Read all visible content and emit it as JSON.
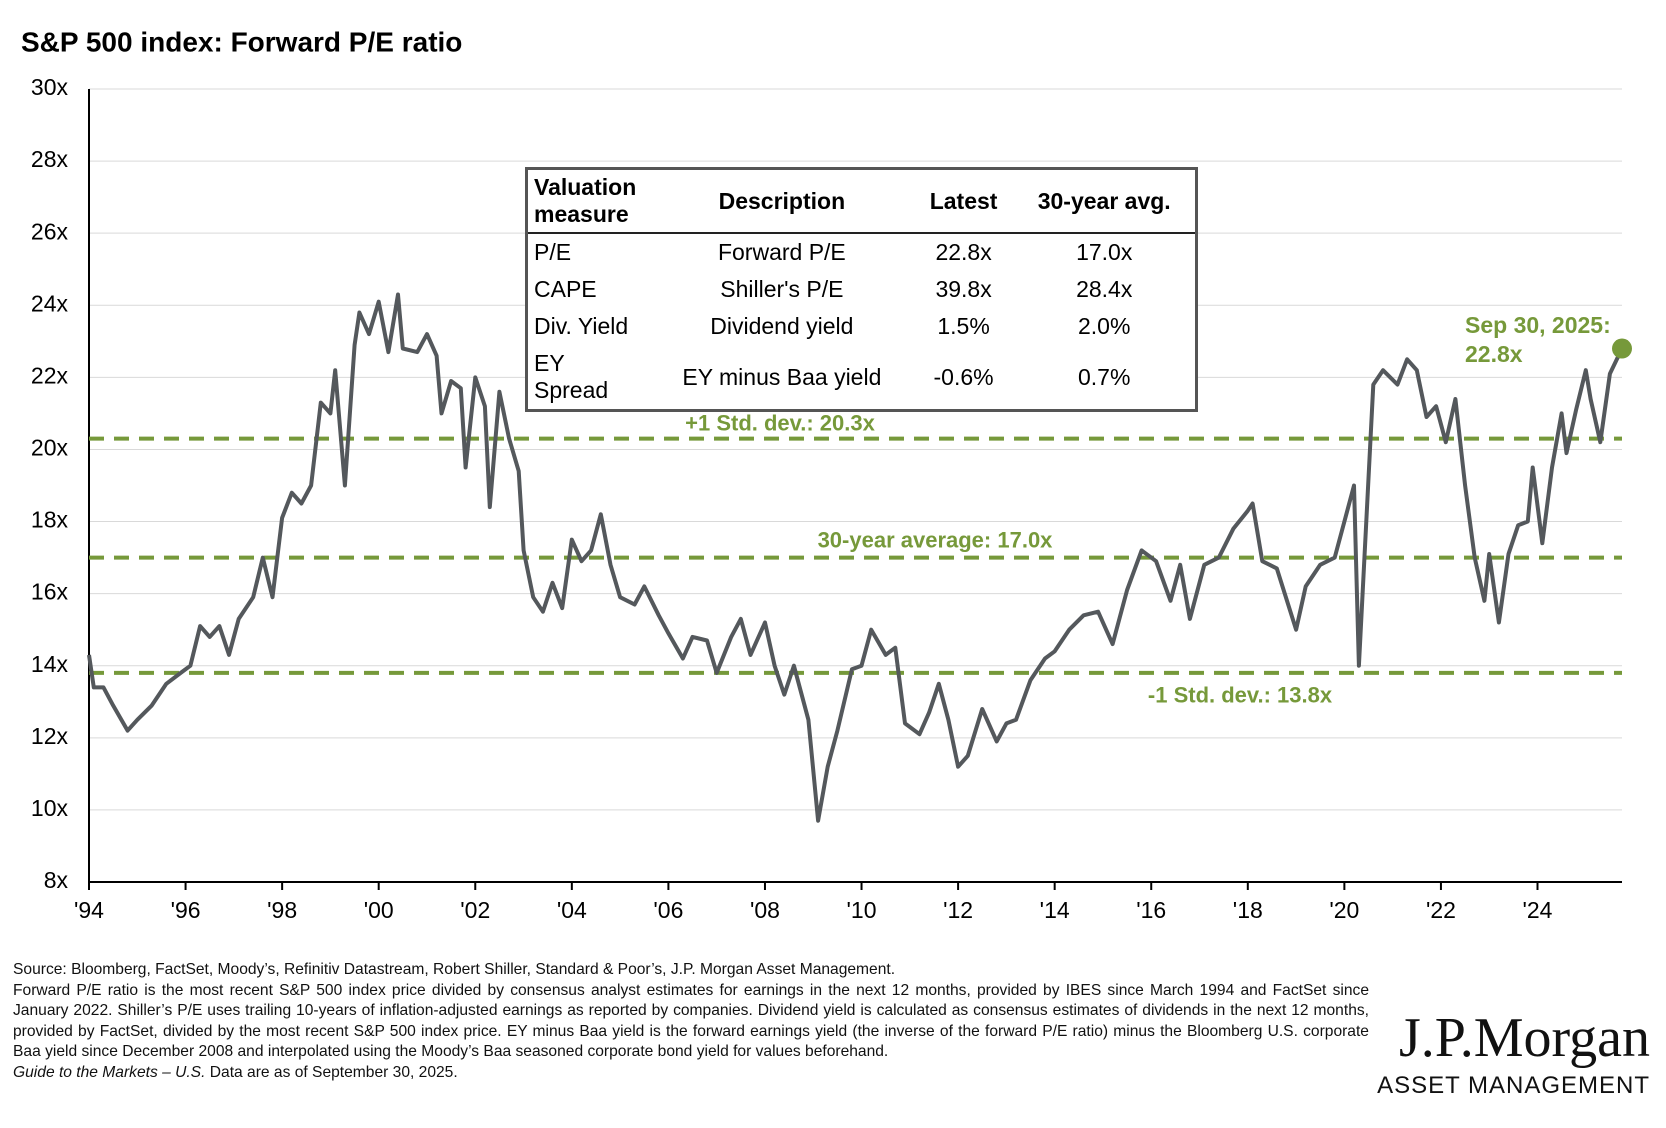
{
  "chart_data": {
    "type": "line",
    "title": "S&P 500 index: Forward P/E ratio",
    "color": "#54585c",
    "reference_color": "#76993a",
    "grid": true,
    "xlim": [
      1994,
      2025.75
    ],
    "xticks": [
      {
        "value": 1994,
        "label": "'94"
      },
      {
        "value": 1996,
        "label": "'96"
      },
      {
        "value": 1998,
        "label": "'98"
      },
      {
        "value": 2000,
        "label": "'00"
      },
      {
        "value": 2002,
        "label": "'02"
      },
      {
        "value": 2004,
        "label": "'04"
      },
      {
        "value": 2006,
        "label": "'06"
      },
      {
        "value": 2008,
        "label": "'08"
      },
      {
        "value": 2010,
        "label": "'10"
      },
      {
        "value": 2012,
        "label": "'12"
      },
      {
        "value": 2014,
        "label": "'14"
      },
      {
        "value": 2016,
        "label": "'16"
      },
      {
        "value": 2018,
        "label": "'18"
      },
      {
        "value": 2020,
        "label": "'20"
      },
      {
        "value": 2022,
        "label": "'22"
      },
      {
        "value": 2024,
        "label": "'24"
      }
    ],
    "ylim": [
      8,
      30
    ],
    "yticks": [
      {
        "value": 8,
        "label": "8x"
      },
      {
        "value": 10,
        "label": "10x"
      },
      {
        "value": 12,
        "label": "12x"
      },
      {
        "value": 14,
        "label": "14x"
      },
      {
        "value": 16,
        "label": "16x"
      },
      {
        "value": 18,
        "label": "18x"
      },
      {
        "value": 20,
        "label": "20x"
      },
      {
        "value": 22,
        "label": "22x"
      },
      {
        "value": 24,
        "label": "24x"
      },
      {
        "value": 26,
        "label": "26x"
      },
      {
        "value": 28,
        "label": "28x"
      },
      {
        "value": 30,
        "label": "30x"
      }
    ],
    "x": [
      1994.0,
      1994.1,
      1994.3,
      1994.5,
      1994.8,
      1995.0,
      1995.3,
      1995.6,
      1995.9,
      1996.1,
      1996.3,
      1996.5,
      1996.7,
      1996.9,
      1997.1,
      1997.4,
      1997.6,
      1997.8,
      1998.0,
      1998.2,
      1998.4,
      1998.6,
      1998.8,
      1999.0,
      1999.1,
      1999.3,
      1999.5,
      1999.6,
      1999.8,
      2000.0,
      2000.2,
      2000.4,
      2000.5,
      2000.8,
      2001.0,
      2001.2,
      2001.3,
      2001.5,
      2001.7,
      2001.8,
      2002.0,
      2002.2,
      2002.3,
      2002.5,
      2002.7,
      2002.9,
      2003.0,
      2003.2,
      2003.4,
      2003.6,
      2003.8,
      2004.0,
      2004.2,
      2004.4,
      2004.6,
      2004.8,
      2005.0,
      2005.3,
      2005.5,
      2005.8,
      2006.0,
      2006.3,
      2006.5,
      2006.8,
      2007.0,
      2007.3,
      2007.5,
      2007.7,
      2008.0,
      2008.2,
      2008.4,
      2008.6,
      2008.9,
      2009.1,
      2009.3,
      2009.5,
      2009.8,
      2010.0,
      2010.2,
      2010.5,
      2010.7,
      2010.9,
      2011.2,
      2011.4,
      2011.6,
      2011.8,
      2012.0,
      2012.2,
      2012.5,
      2012.8,
      2013.0,
      2013.2,
      2013.5,
      2013.8,
      2014.0,
      2014.3,
      2014.6,
      2014.9,
      2015.2,
      2015.5,
      2015.8,
      2016.1,
      2016.4,
      2016.6,
      2016.8,
      2017.1,
      2017.4,
      2017.7,
      2018.0,
      2018.1,
      2018.3,
      2018.6,
      2019.0,
      2019.2,
      2019.5,
      2019.8,
      2020.0,
      2020.2,
      2020.3,
      2020.6,
      2020.8,
      2021.1,
      2021.3,
      2021.5,
      2021.7,
      2021.9,
      2022.1,
      2022.3,
      2022.5,
      2022.7,
      2022.9,
      2023.0,
      2023.2,
      2023.4,
      2023.6,
      2023.8,
      2023.9,
      2024.1,
      2024.3,
      2024.5,
      2024.6,
      2024.8,
      2025.0,
      2025.1,
      2025.3,
      2025.5,
      2025.75
    ],
    "values": [
      14.3,
      13.4,
      13.4,
      12.9,
      12.2,
      12.5,
      12.9,
      13.5,
      13.8,
      14.0,
      15.1,
      14.8,
      15.1,
      14.3,
      15.3,
      15.9,
      17.0,
      15.9,
      18.1,
      18.8,
      18.5,
      19.0,
      21.3,
      21.0,
      22.2,
      19.0,
      22.9,
      23.8,
      23.2,
      24.1,
      22.7,
      24.3,
      22.8,
      22.7,
      23.2,
      22.6,
      21.0,
      21.9,
      21.7,
      19.5,
      22.0,
      21.2,
      18.4,
      21.6,
      20.3,
      19.4,
      17.2,
      15.9,
      15.5,
      16.3,
      15.6,
      17.5,
      16.9,
      17.2,
      18.2,
      16.8,
      15.9,
      15.7,
      16.2,
      15.4,
      14.9,
      14.2,
      14.8,
      14.7,
      13.8,
      14.8,
      15.3,
      14.3,
      15.2,
      14.0,
      13.2,
      14.0,
      12.5,
      9.7,
      11.2,
      12.2,
      13.9,
      14.0,
      15.0,
      14.3,
      14.5,
      12.4,
      12.1,
      12.7,
      13.5,
      12.5,
      11.2,
      11.5,
      12.8,
      11.9,
      12.4,
      12.5,
      13.6,
      14.2,
      14.4,
      15.0,
      15.4,
      15.5,
      14.6,
      16.1,
      17.2,
      16.9,
      15.8,
      16.8,
      15.3,
      16.8,
      17.0,
      17.8,
      18.3,
      18.5,
      16.9,
      16.7,
      15.0,
      16.2,
      16.8,
      17.0,
      18.0,
      19.0,
      14.0,
      21.8,
      22.2,
      21.8,
      22.5,
      22.2,
      20.9,
      21.2,
      20.2,
      21.4,
      19.0,
      17.0,
      15.8,
      17.1,
      15.2,
      17.1,
      17.9,
      18.0,
      19.5,
      17.4,
      19.5,
      21.0,
      19.9,
      21.1,
      22.2,
      21.4,
      20.2,
      22.1,
      22.8
    ],
    "reference_lines": [
      {
        "label": "+1 Std. dev.: 20.3x",
        "value": 20.3
      },
      {
        "label": "30-year average: 17.0x",
        "value": 17.0
      },
      {
        "label": "-1 Std. dev.: 13.8x",
        "value": 13.8
      }
    ],
    "latest_annotation": [
      "Sep 30, 2025:",
      "22.8x"
    ]
  },
  "table": {
    "columns": [
      "Valuation measure",
      "Description",
      "Latest",
      "30-year avg."
    ],
    "rows": [
      [
        "P/E",
        "Forward P/E",
        "22.8x",
        "17.0x"
      ],
      [
        "CAPE",
        "Shiller's P/E",
        "39.8x",
        "28.4x"
      ],
      [
        "Div. Yield",
        "Dividend yield",
        "1.5%",
        "2.0%"
      ],
      [
        "EY Spread",
        "EY minus Baa yield",
        "-0.6%",
        "0.7%"
      ]
    ]
  },
  "footer": {
    "source": "Source: Bloomberg, FactSet, Moody’s, Refinitiv Datastream, Robert Shiller, Standard & Poor’s, J.P. Morgan Asset Management.",
    "notes": "Forward P/E ratio is the most recent S&P 500 index price divided by consensus analyst estimates for earnings in the next 12 months, provided by IBES since March 1994 and FactSet since January 2022. Shiller’s P/E uses trailing 10-years of inflation-adjusted earnings as reported by companies. Dividend yield is calculated as consensus estimates of dividends in the next 12 months, provided by FactSet, divided by the most recent S&P 500 index price. EY minus Baa yield is the forward earnings yield (the inverse of the forward P/E ratio) minus the Bloomberg U.S. corporate Baa yield since December 2008 and interpolated using the Moody’s Baa seasoned corporate bond yield for values beforehand.",
    "guide": "Guide to the Markets – U.S.",
    "as_of": "Data are as of September 30, 2025."
  },
  "logo": {
    "name": "J.P.Morgan",
    "sub": "ASSET MANAGEMENT"
  }
}
